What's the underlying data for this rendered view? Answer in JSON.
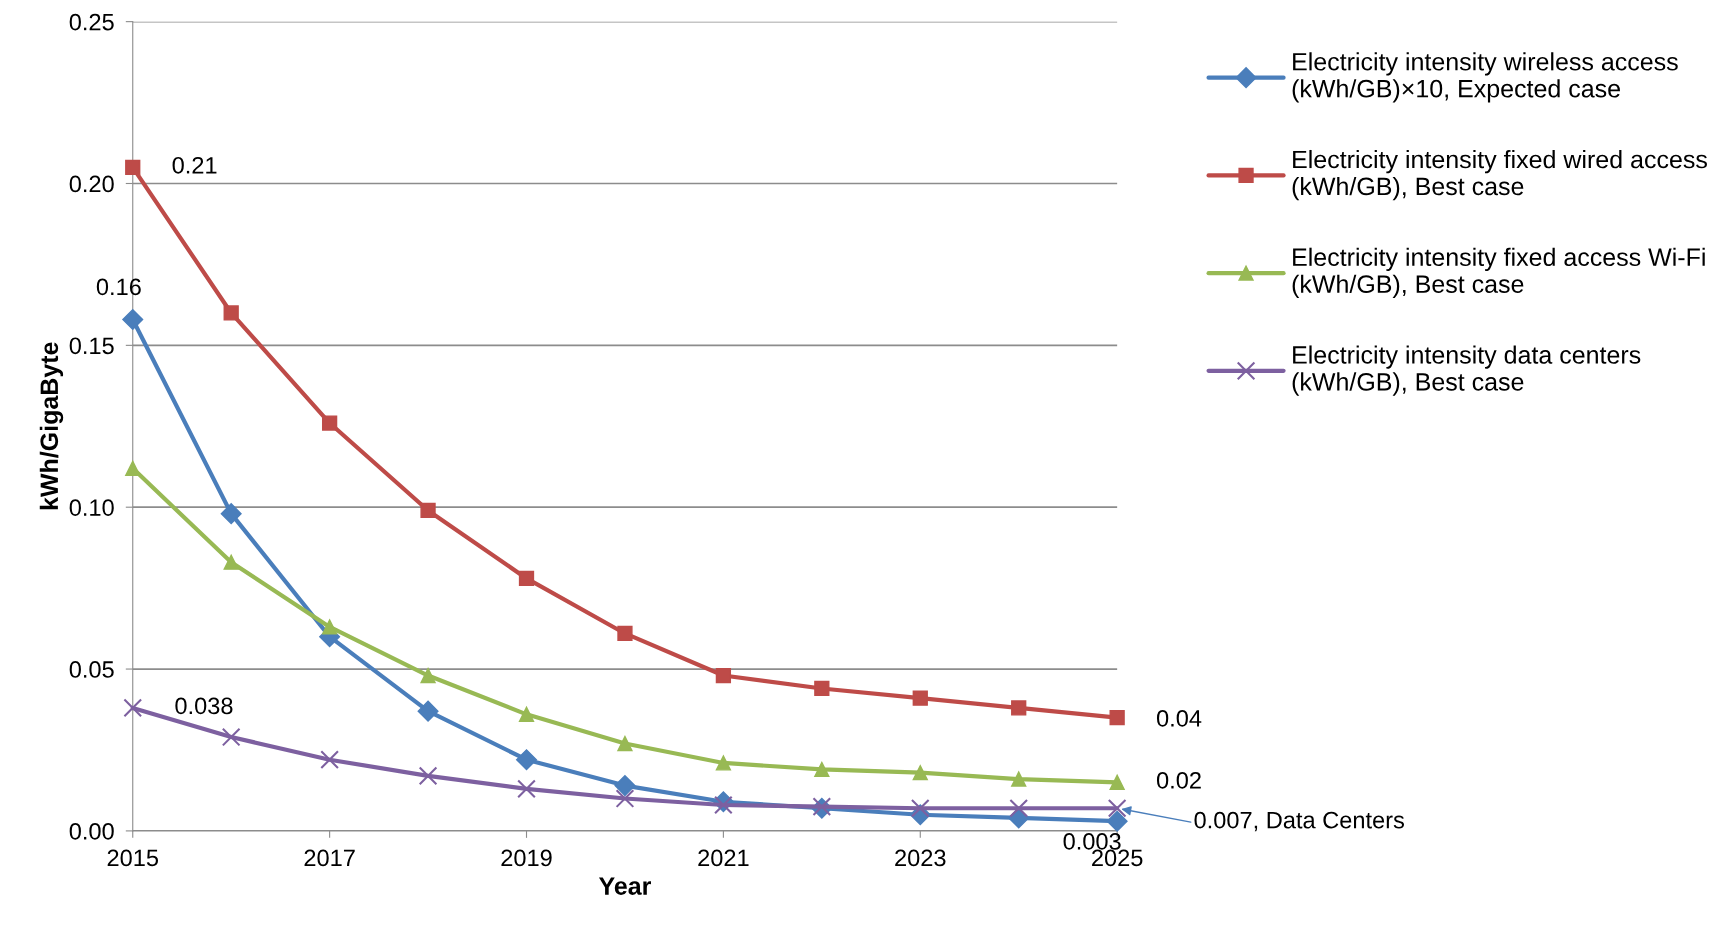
{
  "chart_data": {
    "type": "line",
    "xlabel": "Year",
    "ylabel": "kWh/GigaByte",
    "x": [
      2015,
      2016,
      2017,
      2018,
      2019,
      2020,
      2021,
      2022,
      2023,
      2024,
      2025
    ],
    "xlim": [
      2015,
      2025
    ],
    "xticks": [
      2015,
      2017,
      2019,
      2021,
      2023,
      2025
    ],
    "ylim": [
      0,
      0.25
    ],
    "yticks": [
      {
        "value": 0,
        "label": "0.00"
      },
      {
        "value": 0.05,
        "label": "0.05"
      },
      {
        "value": 0.1,
        "label": "0.10"
      },
      {
        "value": 0.15,
        "label": "0.15"
      },
      {
        "value": 0.2,
        "label": "0.20"
      },
      {
        "value": 0.25,
        "label": "0.25"
      }
    ],
    "grid": "y",
    "legend": "right",
    "line_style": "solid",
    "series": [
      {
        "name": "Electricity intensity wireless access\n(kWh/GB)×10, Expected case",
        "color": "#4a7ebb",
        "marker": "diamond",
        "values": [
          0.158,
          0.098,
          0.06,
          0.037,
          0.022,
          0.014,
          0.009,
          0.007,
          0.005,
          0.004,
          0.003
        ],
        "value_labels": [
          "0.16",
          null,
          null,
          null,
          null,
          null,
          null,
          null,
          null,
          null,
          "0.003"
        ]
      },
      {
        "name": "Electricity intensity fixed wired access\n(kWh/GB), Best case",
        "color": "#be4b48",
        "marker": "square",
        "values": [
          0.205,
          0.16,
          0.126,
          0.099,
          0.078,
          0.061,
          0.048,
          0.044,
          0.041,
          0.038,
          0.035
        ],
        "value_labels": [
          "0.21",
          null,
          null,
          null,
          null,
          null,
          null,
          null,
          null,
          null,
          "0.04"
        ]
      },
      {
        "name": "Electricity intensity fixed access Wi-Fi\n(kWh/GB), Best case",
        "color": "#98b954",
        "marker": "triangle",
        "values": [
          0.112,
          0.083,
          0.063,
          0.048,
          0.036,
          0.027,
          0.021,
          0.019,
          0.018,
          0.016,
          0.015
        ],
        "value_labels": [
          null,
          null,
          null,
          null,
          null,
          null,
          null,
          null,
          null,
          null,
          "0.02"
        ]
      },
      {
        "name": "Electricity intensity data centers\n(kWh/GB), Best case",
        "color": "#7d60a0",
        "marker": "cross",
        "values": [
          0.038,
          0.029,
          0.022,
          0.017,
          0.013,
          0.01,
          0.008,
          0.0075,
          0.007,
          0.007,
          0.007
        ],
        "value_labels": [
          "0.038",
          null,
          null,
          null,
          null,
          null,
          null,
          null,
          null,
          null,
          "0.007, Data Centers"
        ]
      }
    ]
  }
}
